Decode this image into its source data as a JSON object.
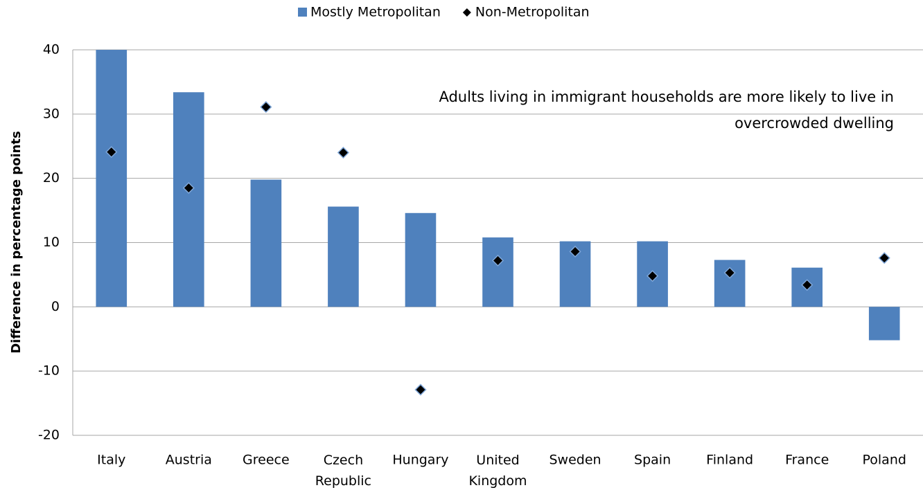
{
  "chart_data": {
    "type": "bar",
    "ylabel": "Difference in percentage points",
    "annotation": [
      "Adults living in immigrant households are more likely to live in",
      "overcrowded dwelling"
    ],
    "categories": [
      "Italy",
      "Austria",
      "Greece",
      "Czech Republic",
      "Hungary",
      "United Kingdom",
      "Sweden",
      "Spain",
      "Finland",
      "France",
      "Poland"
    ],
    "series": [
      {
        "name": "Mostly Metropolitan",
        "type": "bar",
        "color": "#4f81bd",
        "values": [
          40,
          33.4,
          19.8,
          15.6,
          14.6,
          10.8,
          10.2,
          10.2,
          7.3,
          6.1,
          -5.2
        ]
      },
      {
        "name": "Non-Metropolitan",
        "type": "scatter",
        "color": "#000000",
        "values": [
          24.1,
          18.5,
          31.1,
          24.0,
          -12.9,
          7.2,
          8.6,
          4.8,
          5.3,
          3.4,
          7.6
        ]
      }
    ],
    "ylim": [
      -20,
      40
    ],
    "yticks": [
      -20,
      -10,
      0,
      10,
      20,
      30,
      40
    ],
    "grid": true,
    "legend": "top"
  }
}
